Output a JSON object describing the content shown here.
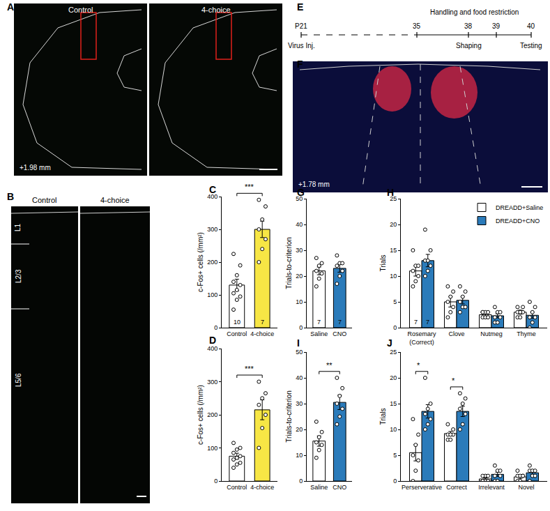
{
  "panels": [
    "A",
    "B",
    "C",
    "D",
    "E",
    "F",
    "G",
    "H",
    "I",
    "J"
  ],
  "images": {
    "A": {
      "labels": [
        "Control",
        "4-choice"
      ],
      "coordinate": "+1.98 mm"
    },
    "B": {
      "labels": [
        "Control",
        "4-choice"
      ],
      "layers": [
        "L1",
        "L2/3",
        "L5/6"
      ]
    },
    "F": {
      "coordinate": "+1.78 mm"
    }
  },
  "timeline": {
    "title": "Handling and food restriction",
    "events": [
      {
        "tick": "P21",
        "label": "Virus Inj."
      },
      {
        "tick": "35"
      },
      {
        "tick": "38",
        "label": "Shaping"
      },
      {
        "tick": "39"
      },
      {
        "tick": "40",
        "label": "Testing"
      }
    ]
  },
  "chart_data": [
    {
      "panel": "C",
      "type": "bar",
      "categories": [
        "Control",
        "4-choice"
      ],
      "values": [
        130,
        300
      ],
      "errors": [
        18,
        25
      ],
      "points": [
        [
          55,
          85,
          95,
          105,
          115,
          130,
          140,
          160,
          190,
          225
        ],
        [
          200,
          240,
          270,
          300,
          330,
          370,
          390
        ]
      ],
      "n": [
        10,
        7
      ],
      "colors": [
        "#ffffff",
        "#f7e645"
      ],
      "ylabel": "c-Fos+ cells (/mm²)",
      "ylim": [
        0,
        400
      ],
      "yticks": [
        0,
        100,
        200,
        300,
        400
      ],
      "significance": "***",
      "grid": false
    },
    {
      "panel": "D",
      "type": "bar",
      "categories": [
        "Control",
        "4-choice"
      ],
      "values": [
        75,
        215
      ],
      "errors": [
        9,
        30
      ],
      "points": [
        [
          40,
          50,
          55,
          65,
          70,
          75,
          85,
          95,
          100,
          115
        ],
        [
          100,
          160,
          200,
          230,
          250,
          265,
          300
        ]
      ],
      "colors": [
        "#ffffff",
        "#f7e645"
      ],
      "ylabel": "c-Fos+ cells (/mm²)",
      "ylim": [
        0,
        400
      ],
      "yticks": [
        0,
        100,
        200,
        300,
        400
      ],
      "significance": "***",
      "grid": false
    },
    {
      "panel": "G",
      "type": "bar",
      "categories": [
        "Saline",
        "CNO"
      ],
      "values": [
        22,
        23
      ],
      "errors": [
        1.5,
        1.5
      ],
      "points": [
        [
          16,
          19,
          21,
          22,
          24,
          25,
          27
        ],
        [
          17,
          20,
          22,
          24,
          25,
          25,
          28
        ]
      ],
      "n": [
        7,
        7
      ],
      "colors": [
        "#ffffff",
        "#2b7bba"
      ],
      "ylabel": "Trials-to-criterion",
      "ylim": [
        0,
        50
      ],
      "yticks": [
        0,
        10,
        20,
        30,
        40,
        50
      ],
      "grid": false
    },
    {
      "panel": "H",
      "type": "bar",
      "categories": [
        "Rosemary (Correct)",
        "Clove",
        "Nutmeg",
        "Thyme"
      ],
      "series": [
        {
          "name": "DREADD+Saline",
          "color": "#ffffff",
          "values": [
            11,
            5,
            2.5,
            3
          ],
          "errors": [
            1,
            1,
            0.3,
            0.4
          ],
          "points": [
            [
              8,
              9,
              10,
              11,
              12,
              12,
              15
            ],
            [
              2,
              3,
              4,
              5,
              6,
              7,
              8
            ],
            [
              2,
              2,
              2,
              3,
              3,
              3,
              3
            ],
            [
              2,
              2,
              3,
              3,
              3,
              4,
              4
            ]
          ],
          "n": [
            7,
            null,
            null,
            null
          ]
        },
        {
          "name": "DREADD+CNO",
          "color": "#2b7bba",
          "values": [
            13,
            5.3,
            2.3,
            2.4
          ],
          "errors": [
            1.2,
            0.7,
            0.4,
            0.6
          ],
          "points": [
            [
              10,
              11,
              12,
              13,
              13,
              15,
              19
            ],
            [
              3,
              4,
              4,
              5,
              6,
              7,
              8
            ],
            [
              1,
              1,
              2,
              2,
              3,
              3,
              4
            ],
            [
              0,
              1,
              2,
              2,
              3,
              4,
              5
            ]
          ],
          "n": [
            7,
            null,
            null,
            null
          ]
        }
      ],
      "ylabel": "Trials",
      "ylim": [
        0,
        25
      ],
      "yticks": [
        0,
        5,
        10,
        15,
        20,
        25
      ],
      "legend": "top right",
      "grid": false
    },
    {
      "panel": "I",
      "type": "bar",
      "categories": [
        "Saline",
        "CNO"
      ],
      "values": [
        15.5,
        30.5
      ],
      "errors": [
        2,
        2.8
      ],
      "points": [
        [
          9,
          12,
          14,
          15,
          17,
          19,
          23
        ],
        [
          22,
          25,
          28,
          30,
          33,
          36,
          40
        ]
      ],
      "colors": [
        "#ffffff",
        "#2b7bba"
      ],
      "ylabel": "Trials-to-criterion",
      "ylim": [
        0,
        50
      ],
      "yticks": [
        0,
        10,
        20,
        30,
        40,
        50
      ],
      "significance": "**",
      "grid": false
    },
    {
      "panel": "J",
      "type": "bar",
      "categories": [
        "Perserverative",
        "Correct",
        "Irrelevant",
        "Novel"
      ],
      "series": [
        {
          "name": "DREADD+Saline",
          "color": "#ffffff",
          "values": [
            5.5,
            9.2,
            0.4,
            0.8
          ],
          "errors": [
            1.6,
            0.4,
            0.2,
            0.3
          ],
          "points": [
            [
              0,
              2,
              4,
              5,
              7,
              9,
              12
            ],
            [
              8,
              8,
              9,
              9,
              9,
              10,
              11
            ],
            [
              0,
              0,
              0,
              0,
              1,
              1,
              1
            ],
            [
              0,
              0,
              1,
              1,
              1,
              1,
              2
            ]
          ]
        },
        {
          "name": "DREADD+CNO",
          "color": "#2b7bba",
          "values": [
            13.5,
            13.5,
            1.3,
            1.6
          ],
          "errors": [
            1.3,
            1,
            0.4,
            0.4
          ],
          "points": [
            [
              10,
              11,
              12,
              13,
              14,
              15,
              20
            ],
            [
              10,
              11,
              13,
              14,
              15,
              16,
              17
            ],
            [
              0,
              0,
              1,
              1,
              2,
              2,
              3
            ],
            [
              0,
              1,
              1,
              2,
              2,
              2,
              3
            ]
          ]
        }
      ],
      "ylabel": "Trials",
      "ylim": [
        0,
        25
      ],
      "yticks": [
        0,
        5,
        10,
        15,
        20,
        25
      ],
      "significance": {
        "Perserverative": "*",
        "Correct": "*"
      },
      "grid": false
    }
  ]
}
